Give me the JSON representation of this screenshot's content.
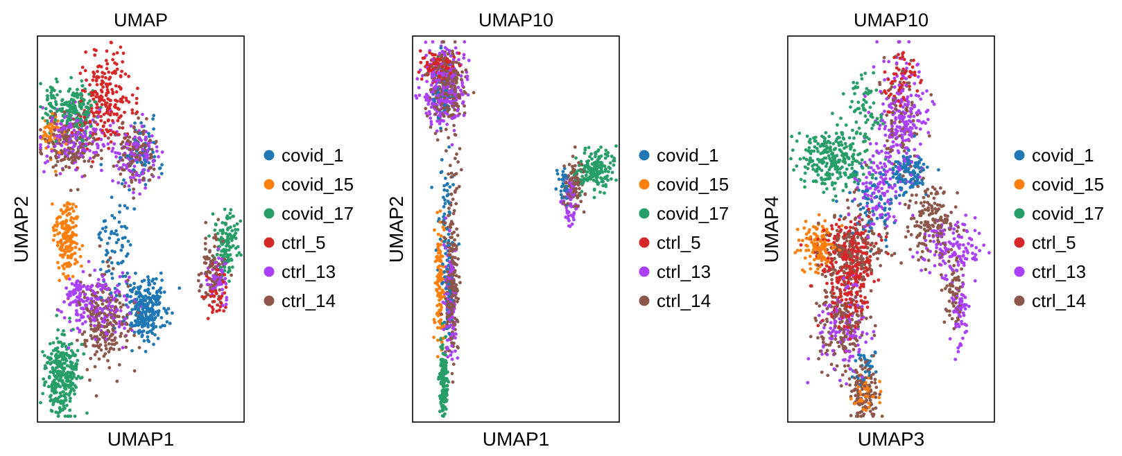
{
  "chart_data": [
    {
      "type": "scatter",
      "title": "UMAP",
      "xlabel": "UMAP1",
      "ylabel": "UMAP2",
      "grid": false,
      "ticks": false,
      "legend_placement": "right",
      "series": [
        {
          "name": "covid_1",
          "color": "#1f77b4"
        },
        {
          "name": "covid_15",
          "color": "#ff7f0e"
        },
        {
          "name": "covid_17",
          "color": "#279e68"
        },
        {
          "name": "ctrl_5",
          "color": "#d62728"
        },
        {
          "name": "ctrl_13",
          "color": "#aa40fc"
        },
        {
          "name": "ctrl_14",
          "color": "#8c564b"
        }
      ],
      "clusters": [
        {
          "series": "covid_17",
          "cx": 0.19,
          "cy": 0.81,
          "sx": 0.05,
          "sy": 0.03,
          "n": 160
        },
        {
          "series": "ctrl_5",
          "cx": 0.33,
          "cy": 0.83,
          "sx": 0.07,
          "sy": 0.06,
          "n": 220
        },
        {
          "series": "ctrl_13",
          "cx": 0.18,
          "cy": 0.74,
          "sx": 0.08,
          "sy": 0.04,
          "n": 150
        },
        {
          "series": "ctrl_14",
          "cx": 0.16,
          "cy": 0.72,
          "sx": 0.07,
          "sy": 0.04,
          "n": 160
        },
        {
          "series": "covid_15",
          "cx": 0.08,
          "cy": 0.75,
          "sx": 0.03,
          "sy": 0.03,
          "n": 50
        },
        {
          "series": "covid_17",
          "cx": 0.07,
          "cy": 0.83,
          "sx": 0.02,
          "sy": 0.03,
          "n": 40
        },
        {
          "series": "ctrl_13",
          "cx": 0.48,
          "cy": 0.69,
          "sx": 0.05,
          "sy": 0.04,
          "n": 110
        },
        {
          "series": "ctrl_14",
          "cx": 0.48,
          "cy": 0.7,
          "sx": 0.05,
          "sy": 0.04,
          "n": 120
        },
        {
          "series": "covid_1",
          "cx": 0.52,
          "cy": 0.69,
          "sx": 0.04,
          "sy": 0.04,
          "n": 60
        },
        {
          "series": "covid_15",
          "cx": 0.14,
          "cy": 0.48,
          "sx": 0.03,
          "sy": 0.05,
          "n": 180
        },
        {
          "series": "covid_1",
          "cx": 0.38,
          "cy": 0.48,
          "sx": 0.05,
          "sy": 0.08,
          "n": 70
        },
        {
          "series": "covid_1",
          "cx": 0.53,
          "cy": 0.29,
          "sx": 0.05,
          "sy": 0.04,
          "n": 260
        },
        {
          "series": "ctrl_13",
          "cx": 0.3,
          "cy": 0.3,
          "sx": 0.08,
          "sy": 0.04,
          "n": 160
        },
        {
          "series": "ctrl_14",
          "cx": 0.32,
          "cy": 0.26,
          "sx": 0.06,
          "sy": 0.06,
          "n": 220
        },
        {
          "series": "ctrl_13",
          "cx": 0.2,
          "cy": 0.33,
          "sx": 0.03,
          "sy": 0.02,
          "n": 60
        },
        {
          "series": "covid_17",
          "cx": 0.12,
          "cy": 0.12,
          "sx": 0.04,
          "sy": 0.05,
          "n": 300
        },
        {
          "series": "covid_17",
          "cx": 0.91,
          "cy": 0.46,
          "sx": 0.03,
          "sy": 0.04,
          "n": 120
        },
        {
          "series": "ctrl_14",
          "cx": 0.85,
          "cy": 0.4,
          "sx": 0.03,
          "sy": 0.05,
          "n": 90
        },
        {
          "series": "ctrl_13",
          "cx": 0.87,
          "cy": 0.38,
          "sx": 0.03,
          "sy": 0.04,
          "n": 60
        },
        {
          "series": "ctrl_5",
          "cx": 0.87,
          "cy": 0.33,
          "sx": 0.03,
          "sy": 0.03,
          "n": 40
        }
      ]
    },
    {
      "type": "scatter",
      "title": "UMAP10",
      "xlabel": "UMAP1",
      "ylabel": "UMAP2",
      "grid": false,
      "ticks": false,
      "legend_placement": "right",
      "series": [
        {
          "name": "covid_1",
          "color": "#1f77b4"
        },
        {
          "name": "covid_15",
          "color": "#ff7f0e"
        },
        {
          "name": "covid_17",
          "color": "#279e68"
        },
        {
          "name": "ctrl_5",
          "color": "#d62728"
        },
        {
          "name": "ctrl_13",
          "color": "#aa40fc"
        },
        {
          "name": "ctrl_14",
          "color": "#8c564b"
        }
      ],
      "clusters": [
        {
          "series": "ctrl_13",
          "cx": 0.15,
          "cy": 0.87,
          "sx": 0.05,
          "sy": 0.05,
          "n": 260
        },
        {
          "series": "ctrl_14",
          "cx": 0.17,
          "cy": 0.87,
          "sx": 0.04,
          "sy": 0.05,
          "n": 240
        },
        {
          "series": "ctrl_5",
          "cx": 0.12,
          "cy": 0.92,
          "sx": 0.04,
          "sy": 0.02,
          "n": 90
        },
        {
          "series": "covid_1",
          "cx": 0.14,
          "cy": 0.84,
          "sx": 0.03,
          "sy": 0.04,
          "n": 40
        },
        {
          "series": "covid_1",
          "cx": 0.16,
          "cy": 0.6,
          "sx": 0.02,
          "sy": 0.1,
          "n": 40
        },
        {
          "series": "ctrl_14",
          "cx": 0.19,
          "cy": 0.6,
          "sx": 0.02,
          "sy": 0.09,
          "n": 40
        },
        {
          "series": "ctrl_14",
          "cx": 0.19,
          "cy": 0.33,
          "sx": 0.015,
          "sy": 0.08,
          "n": 200
        },
        {
          "series": "ctrl_13",
          "cx": 0.18,
          "cy": 0.3,
          "sx": 0.015,
          "sy": 0.08,
          "n": 110
        },
        {
          "series": "covid_15",
          "cx": 0.13,
          "cy": 0.35,
          "sx": 0.01,
          "sy": 0.09,
          "n": 110
        },
        {
          "series": "covid_1",
          "cx": 0.17,
          "cy": 0.36,
          "sx": 0.012,
          "sy": 0.08,
          "n": 50
        },
        {
          "series": "covid_17",
          "cx": 0.15,
          "cy": 0.11,
          "sx": 0.01,
          "sy": 0.05,
          "n": 140
        },
        {
          "series": "covid_17",
          "cx": 0.88,
          "cy": 0.65,
          "sx": 0.05,
          "sy": 0.025,
          "n": 170
        },
        {
          "series": "ctrl_14",
          "cx": 0.78,
          "cy": 0.61,
          "sx": 0.025,
          "sy": 0.03,
          "n": 100
        },
        {
          "series": "ctrl_13",
          "cx": 0.76,
          "cy": 0.58,
          "sx": 0.02,
          "sy": 0.03,
          "n": 60
        },
        {
          "series": "covid_1",
          "cx": 0.73,
          "cy": 0.62,
          "sx": 0.015,
          "sy": 0.02,
          "n": 30
        }
      ]
    },
    {
      "type": "scatter",
      "title": "UMAP10",
      "xlabel": "UMAP3",
      "ylabel": "UMAP4",
      "grid": false,
      "ticks": false,
      "legend_placement": "right",
      "series": [
        {
          "name": "covid_1",
          "color": "#1f77b4"
        },
        {
          "name": "covid_15",
          "color": "#ff7f0e"
        },
        {
          "name": "covid_17",
          "color": "#279e68"
        },
        {
          "name": "ctrl_5",
          "color": "#d62728"
        },
        {
          "name": "ctrl_13",
          "color": "#aa40fc"
        },
        {
          "name": "ctrl_14",
          "color": "#8c564b"
        }
      ],
      "clusters": [
        {
          "series": "covid_17",
          "cx": 0.22,
          "cy": 0.68,
          "sx": 0.09,
          "sy": 0.04,
          "n": 260
        },
        {
          "series": "covid_17",
          "cx": 0.38,
          "cy": 0.8,
          "sx": 0.04,
          "sy": 0.06,
          "n": 70
        },
        {
          "series": "ctrl_13",
          "cx": 0.55,
          "cy": 0.78,
          "sx": 0.06,
          "sy": 0.08,
          "n": 220
        },
        {
          "series": "ctrl_5",
          "cx": 0.55,
          "cy": 0.88,
          "sx": 0.04,
          "sy": 0.04,
          "n": 60
        },
        {
          "series": "ctrl_14",
          "cx": 0.55,
          "cy": 0.8,
          "sx": 0.05,
          "sy": 0.07,
          "n": 80
        },
        {
          "series": "covid_1",
          "cx": 0.58,
          "cy": 0.64,
          "sx": 0.05,
          "sy": 0.03,
          "n": 120
        },
        {
          "series": "ctrl_5",
          "cx": 0.3,
          "cy": 0.43,
          "sx": 0.07,
          "sy": 0.05,
          "n": 260
        },
        {
          "series": "covid_15",
          "cx": 0.14,
          "cy": 0.46,
          "sx": 0.04,
          "sy": 0.03,
          "n": 130
        },
        {
          "series": "ctrl_14",
          "cx": 0.32,
          "cy": 0.45,
          "sx": 0.08,
          "sy": 0.05,
          "n": 200
        },
        {
          "series": "covid_1",
          "cx": 0.4,
          "cy": 0.55,
          "sx": 0.06,
          "sy": 0.05,
          "n": 70
        },
        {
          "series": "ctrl_13",
          "cx": 0.44,
          "cy": 0.6,
          "sx": 0.06,
          "sy": 0.06,
          "n": 120
        },
        {
          "series": "ctrl_14",
          "cx": 0.7,
          "cy": 0.52,
          "sx": 0.06,
          "sy": 0.05,
          "n": 160
        },
        {
          "series": "ctrl_13",
          "cx": 0.8,
          "cy": 0.45,
          "sx": 0.08,
          "sy": 0.04,
          "n": 120
        },
        {
          "series": "ctrl_13",
          "cx": 0.83,
          "cy": 0.3,
          "sx": 0.02,
          "sy": 0.05,
          "n": 60
        },
        {
          "series": "ctrl_14",
          "cx": 0.8,
          "cy": 0.33,
          "sx": 0.02,
          "sy": 0.05,
          "n": 60
        },
        {
          "series": "ctrl_14",
          "cx": 0.26,
          "cy": 0.26,
          "sx": 0.06,
          "sy": 0.06,
          "n": 170
        },
        {
          "series": "ctrl_13",
          "cx": 0.27,
          "cy": 0.24,
          "sx": 0.06,
          "sy": 0.06,
          "n": 120
        },
        {
          "series": "ctrl_5",
          "cx": 0.28,
          "cy": 0.31,
          "sx": 0.05,
          "sy": 0.04,
          "n": 80
        },
        {
          "series": "ctrl_14",
          "cx": 0.37,
          "cy": 0.08,
          "sx": 0.04,
          "sy": 0.04,
          "n": 110
        },
        {
          "series": "covid_15",
          "cx": 0.38,
          "cy": 0.07,
          "sx": 0.03,
          "sy": 0.02,
          "n": 40
        },
        {
          "series": "covid_1",
          "cx": 0.38,
          "cy": 0.15,
          "sx": 0.03,
          "sy": 0.03,
          "n": 30
        }
      ]
    }
  ]
}
